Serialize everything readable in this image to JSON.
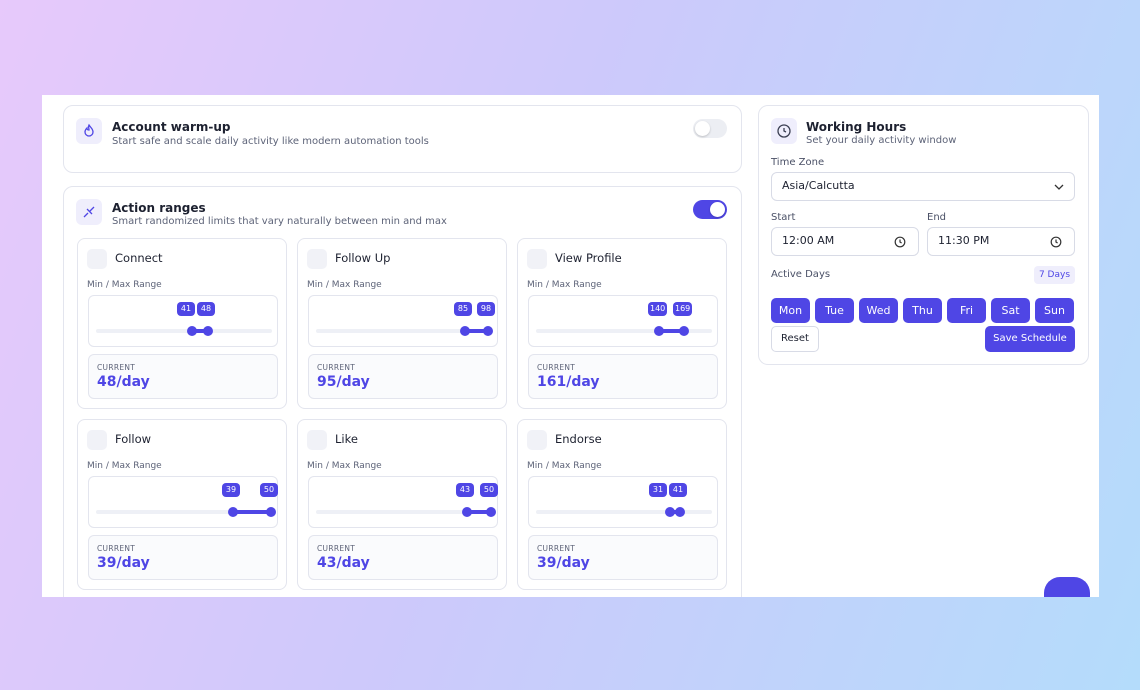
{
  "warmup": {
    "title": "Account warm-up",
    "subtitle": "Start safe and scale daily activity like modern automation tools"
  },
  "action_ranges": {
    "title": "Action ranges",
    "subtitle": "Smart randomized limits that vary naturally between min and max",
    "cards": [
      {
        "name": "Connect",
        "range_label": "Min / Max Range",
        "min": 41,
        "max": 48,
        "current_label": "CURRENT",
        "current": "48/day"
      },
      {
        "name": "Follow Up",
        "range_label": "Min / Max Range",
        "min": 85,
        "max": 98,
        "current_label": "CURRENT",
        "current": "95/day"
      },
      {
        "name": "View Profile",
        "range_label": "Min / Max Range",
        "min": 140,
        "max": 169,
        "current_label": "CURRENT",
        "current": "161/day"
      },
      {
        "name": "Follow",
        "range_label": "Min / Max Range",
        "min": 39,
        "max": 50,
        "current_label": "CURRENT",
        "current": "39/day"
      },
      {
        "name": "Like",
        "range_label": "Min / Max Range",
        "min": 43,
        "max": 50,
        "current_label": "CURRENT",
        "current": "43/day"
      },
      {
        "name": "Endorse",
        "range_label": "Min / Max Range",
        "min": 31,
        "max": 41,
        "current_label": "CURRENT",
        "current": "39/day"
      }
    ]
  },
  "working_hours": {
    "title": "Working Hours",
    "subtitle": "Set your daily activity window",
    "timezone_label": "Time Zone",
    "timezone": "Asia/Calcutta",
    "start_label": "Start",
    "start": "12:00 AM",
    "end_label": "End",
    "end": "11:30 PM",
    "active_days_label": "Active Days",
    "days_count": "7 Days",
    "days": [
      "Mon",
      "Tue",
      "Wed",
      "Thu",
      "Fri",
      "Sat",
      "Sun"
    ],
    "reset": "Reset",
    "save": "Save Schedule"
  }
}
